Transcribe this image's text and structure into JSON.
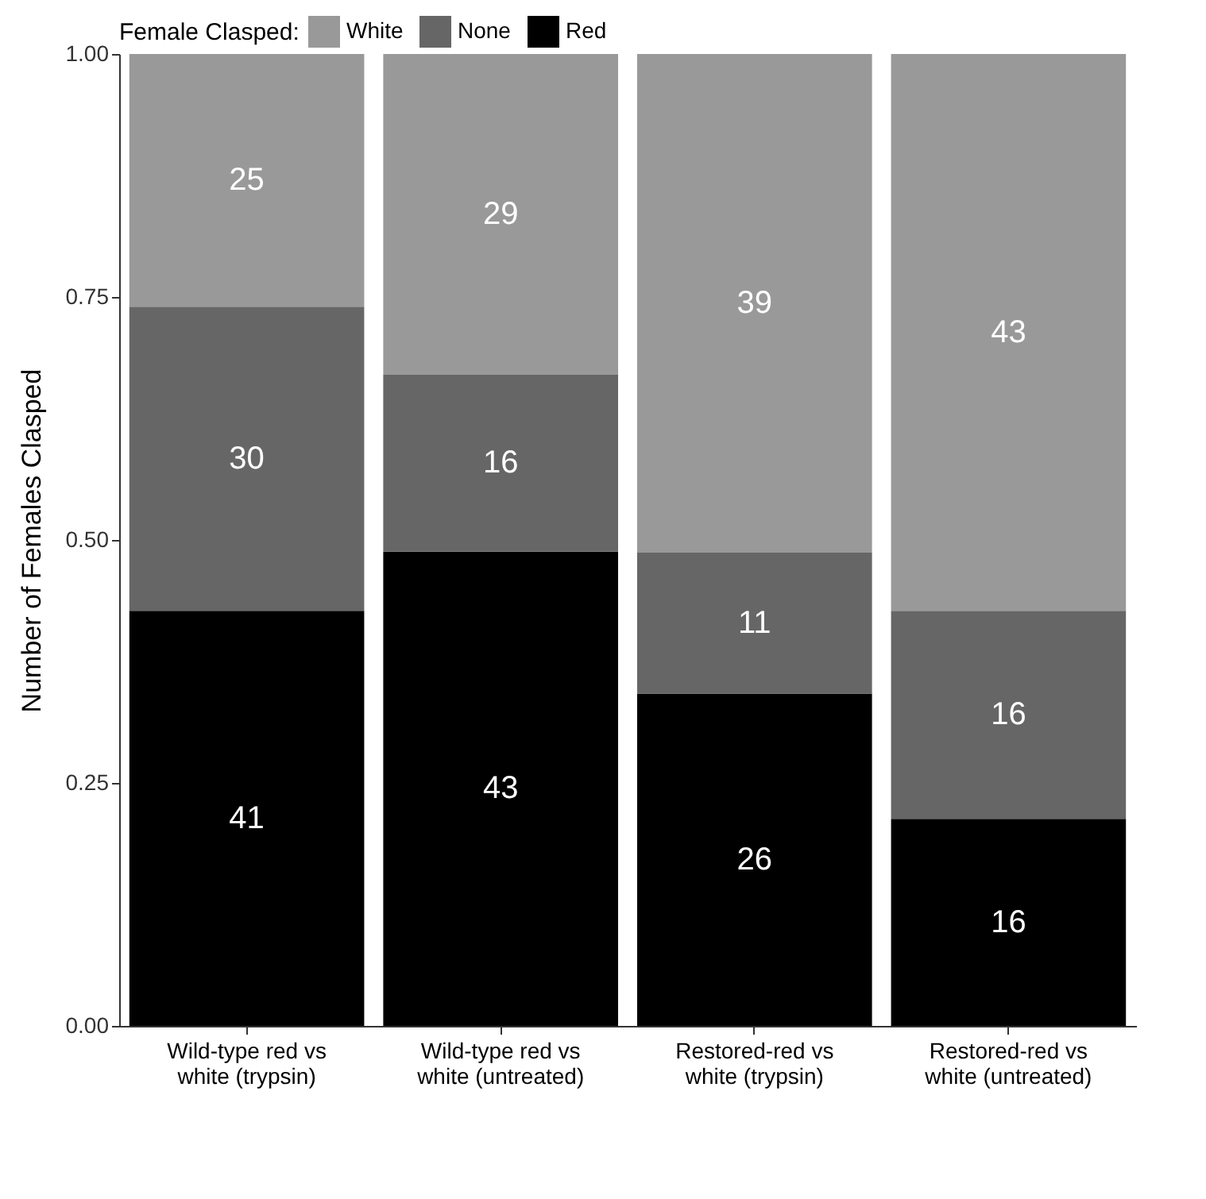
{
  "chart_data": {
    "type": "bar",
    "stacked": true,
    "ylabel": "Number of Females Clasped",
    "legend_title": "Female Clasped:",
    "legend": "top",
    "categories": [
      "Wild-type red vs white (trypsin)",
      "Wild-type red vs white (untreated)",
      "Restored-red vs white (trypsin)",
      "Restored-red vs white (untreated)"
    ],
    "series": [
      {
        "name": "Red",
        "color": "#000000",
        "values": [
          0.427,
          0.488,
          0.342,
          0.213
        ]
      },
      {
        "name": "None",
        "color": "#666666",
        "values": [
          0.313,
          0.182,
          0.145,
          0.214
        ]
      },
      {
        "name": "White",
        "color": "#999999",
        "values": [
          0.26,
          0.33,
          0.513,
          0.573
        ]
      }
    ],
    "annotations": [
      "41",
      "43",
      "26",
      "16",
      "30",
      "16",
      "11",
      "16",
      "25",
      "29",
      "39",
      "43"
    ],
    "ylim": [
      0,
      1
    ],
    "yticks": [
      {
        "value": 0,
        "label": "0.00"
      },
      {
        "value": 0.25,
        "label": "0.25"
      },
      {
        "value": 0.5,
        "label": "0.50"
      },
      {
        "value": 0.75,
        "label": "0.75"
      },
      {
        "value": 1,
        "label": "1.00"
      }
    ],
    "grid": false
  }
}
